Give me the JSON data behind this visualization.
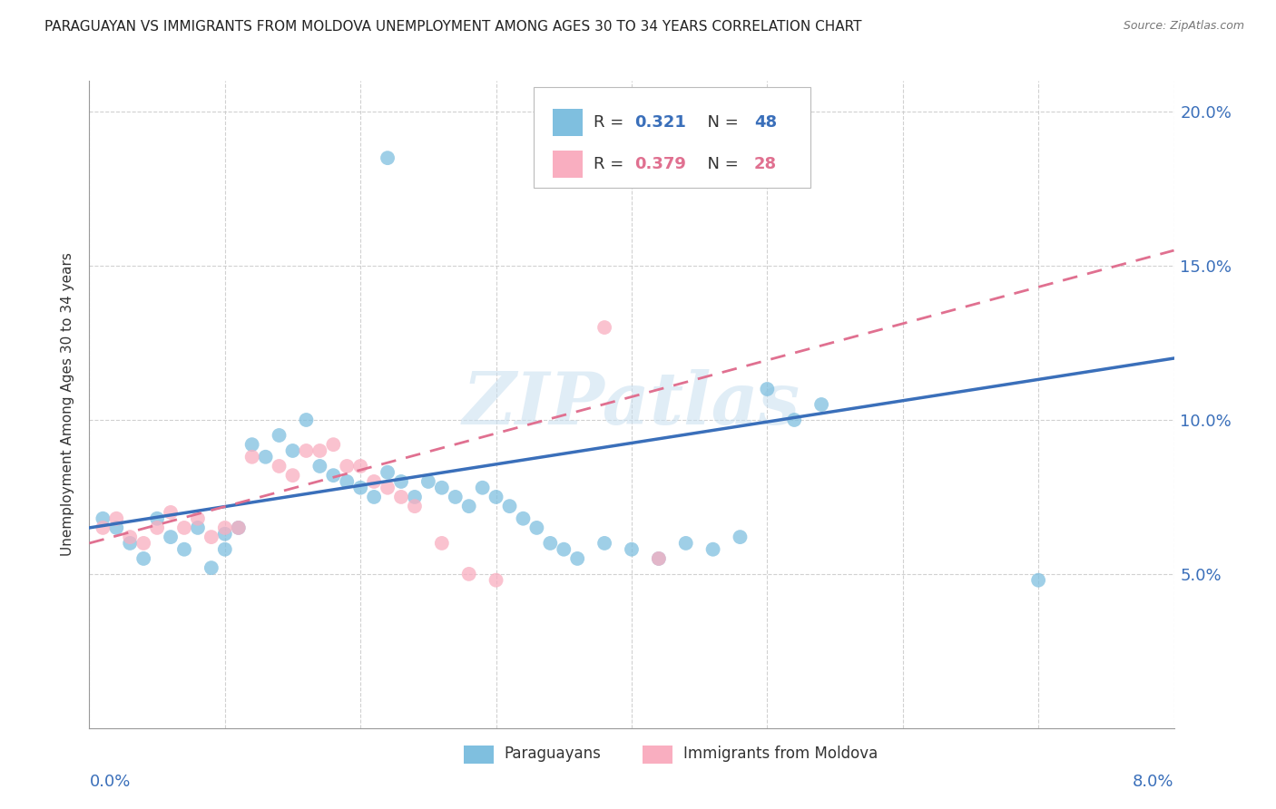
{
  "title": "PARAGUAYAN VS IMMIGRANTS FROM MOLDOVA UNEMPLOYMENT AMONG AGES 30 TO 34 YEARS CORRELATION CHART",
  "source": "Source: ZipAtlas.com",
  "ylabel": "Unemployment Among Ages 30 to 34 years",
  "legend1_r": "0.321",
  "legend1_n": "48",
  "legend2_r": "0.379",
  "legend2_n": "28",
  "blue_color": "#7fbfdf",
  "pink_color": "#f9aec0",
  "blue_line_color": "#3a6fba",
  "pink_line_color": "#e07090",
  "blue_label": "Paraguayans",
  "pink_label": "Immigrants from Moldova",
  "blue_scatter": [
    [
      0.001,
      0.068
    ],
    [
      0.002,
      0.065
    ],
    [
      0.003,
      0.06
    ],
    [
      0.004,
      0.055
    ],
    [
      0.005,
      0.068
    ],
    [
      0.006,
      0.062
    ],
    [
      0.007,
      0.058
    ],
    [
      0.008,
      0.065
    ],
    [
      0.009,
      0.052
    ],
    [
      0.01,
      0.058
    ],
    [
      0.01,
      0.063
    ],
    [
      0.011,
      0.065
    ],
    [
      0.012,
      0.092
    ],
    [
      0.013,
      0.088
    ],
    [
      0.014,
      0.095
    ],
    [
      0.015,
      0.09
    ],
    [
      0.016,
      0.1
    ],
    [
      0.017,
      0.085
    ],
    [
      0.018,
      0.082
    ],
    [
      0.019,
      0.08
    ],
    [
      0.02,
      0.078
    ],
    [
      0.021,
      0.075
    ],
    [
      0.022,
      0.083
    ],
    [
      0.023,
      0.08
    ],
    [
      0.024,
      0.075
    ],
    [
      0.025,
      0.08
    ],
    [
      0.026,
      0.078
    ],
    [
      0.027,
      0.075
    ],
    [
      0.028,
      0.072
    ],
    [
      0.029,
      0.078
    ],
    [
      0.03,
      0.075
    ],
    [
      0.031,
      0.072
    ],
    [
      0.032,
      0.068
    ],
    [
      0.033,
      0.065
    ],
    [
      0.034,
      0.06
    ],
    [
      0.035,
      0.058
    ],
    [
      0.036,
      0.055
    ],
    [
      0.038,
      0.06
    ],
    [
      0.04,
      0.058
    ],
    [
      0.042,
      0.055
    ],
    [
      0.044,
      0.06
    ],
    [
      0.046,
      0.058
    ],
    [
      0.048,
      0.062
    ],
    [
      0.05,
      0.11
    ],
    [
      0.052,
      0.1
    ],
    [
      0.054,
      0.105
    ],
    [
      0.07,
      0.048
    ],
    [
      0.022,
      0.185
    ]
  ],
  "pink_scatter": [
    [
      0.001,
      0.065
    ],
    [
      0.002,
      0.068
    ],
    [
      0.003,
      0.062
    ],
    [
      0.004,
      0.06
    ],
    [
      0.005,
      0.065
    ],
    [
      0.006,
      0.07
    ],
    [
      0.007,
      0.065
    ],
    [
      0.008,
      0.068
    ],
    [
      0.009,
      0.062
    ],
    [
      0.01,
      0.065
    ],
    [
      0.011,
      0.065
    ],
    [
      0.012,
      0.088
    ],
    [
      0.014,
      0.085
    ],
    [
      0.015,
      0.082
    ],
    [
      0.016,
      0.09
    ],
    [
      0.017,
      0.09
    ],
    [
      0.018,
      0.092
    ],
    [
      0.019,
      0.085
    ],
    [
      0.02,
      0.085
    ],
    [
      0.021,
      0.08
    ],
    [
      0.022,
      0.078
    ],
    [
      0.023,
      0.075
    ],
    [
      0.024,
      0.072
    ],
    [
      0.026,
      0.06
    ],
    [
      0.028,
      0.05
    ],
    [
      0.03,
      0.048
    ],
    [
      0.038,
      0.13
    ],
    [
      0.042,
      0.055
    ]
  ],
  "xlim": [
    0.0,
    0.08
  ],
  "ylim": [
    0.0,
    0.21
  ],
  "yticks": [
    0.05,
    0.1,
    0.15,
    0.2
  ],
  "ytick_labels": [
    "5.0%",
    "10.0%",
    "15.0%",
    "20.0%"
  ],
  "xtick_positions": [
    0.0,
    0.01,
    0.02,
    0.03,
    0.04,
    0.05,
    0.06,
    0.07,
    0.08
  ],
  "watermark": "ZIPatlas",
  "title_fontsize": 11,
  "source_fontsize": 9,
  "title_color": "#222222",
  "source_color": "#777777"
}
